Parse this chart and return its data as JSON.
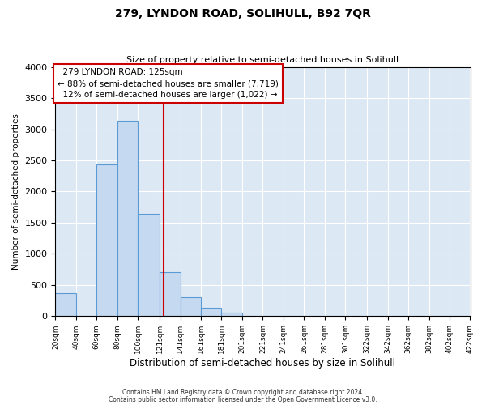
{
  "title": "279, LYNDON ROAD, SOLIHULL, B92 7QR",
  "subtitle": "Size of property relative to semi-detached houses in Solihull",
  "xlabel": "Distribution of semi-detached houses by size in Solihull",
  "ylabel": "Number of semi-detached properties",
  "property_size": 125,
  "property_label": "279 LYNDON ROAD: 125sqm",
  "pct_smaller": 88,
  "count_smaller": 7719,
  "pct_larger": 12,
  "count_larger": 1022,
  "bin_edges": [
    20,
    40,
    60,
    80,
    100,
    121,
    141,
    161,
    181,
    201,
    221,
    241,
    261,
    281,
    301,
    322,
    342,
    362,
    382,
    402,
    422
  ],
  "bar_heights": [
    370,
    0,
    2440,
    3140,
    1640,
    700,
    300,
    130,
    60,
    0,
    0,
    0,
    0,
    0,
    0,
    0,
    0,
    0,
    0,
    0
  ],
  "bar_color": "#c5d9f0",
  "bar_edge_color": "#5b9bd5",
  "vline_x": 125,
  "vline_color": "#cc0000",
  "annotation_box_color": "#ffffff",
  "annotation_box_edge": "#cc0000",
  "ylim": [
    0,
    4000
  ],
  "yticks": [
    0,
    500,
    1000,
    1500,
    2000,
    2500,
    3000,
    3500,
    4000
  ],
  "footer1": "Contains HM Land Registry data © Crown copyright and database right 2024.",
  "footer2": "Contains public sector information licensed under the Open Government Licence v3.0.",
  "background_color": "#ffffff",
  "plot_background": "#dde8f5"
}
